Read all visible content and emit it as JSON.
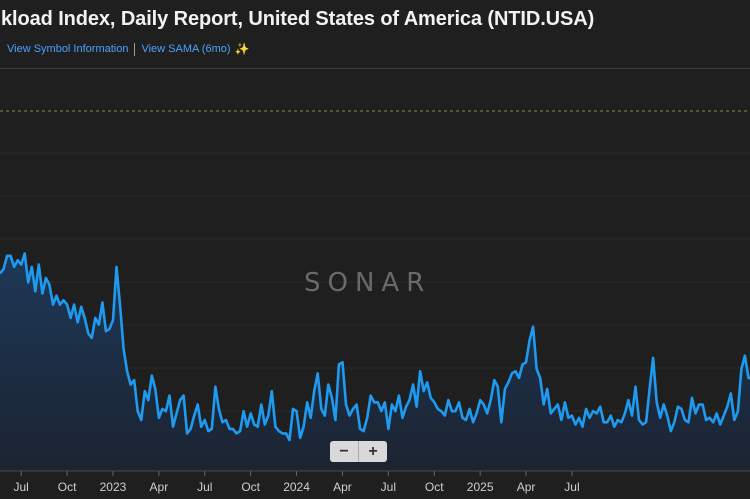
{
  "header": {
    "title": "kload Index, Daily Report, United States of America (NTID.USA)",
    "link_symbol": "View Symbol Information",
    "link_sama": "View SAMA (6mo)",
    "sama_icon": "sparkle-icon"
  },
  "watermark": "SONAR",
  "zoom": {
    "minus": "−",
    "plus": "+"
  },
  "colors": {
    "background": "#1f1f1f",
    "line": "#1e9bf0",
    "area_top": "#1d3a5c",
    "area_bottom": "#1b2433",
    "reference_line": "#7a9a4a"
  },
  "chart_data": {
    "type": "line",
    "title": "",
    "xlabel": "",
    "ylabel": "",
    "x_ticks": [
      "Jul",
      "Oct",
      "2023",
      "Apr",
      "Jul",
      "Oct",
      "2024",
      "Apr",
      "Jul",
      "Oct",
      "2025",
      "Apr",
      "Jul"
    ],
    "x_tick_index": [
      6,
      19,
      32,
      45,
      58,
      71,
      84,
      97,
      110,
      123,
      136,
      149,
      162
    ],
    "grid": true,
    "legend": "none",
    "ylim": [
      0,
      100
    ],
    "series": [
      {
        "values": [
          84,
          86,
          92,
          92,
          87,
          90,
          88,
          93,
          80,
          87,
          76,
          88,
          75,
          82,
          79,
          70,
          74,
          70,
          72,
          70,
          64,
          70,
          62,
          69,
          64,
          57,
          55,
          64,
          61,
          71,
          58,
          59,
          63,
          87,
          70,
          50,
          40,
          34,
          36,
          22,
          18,
          31,
          27,
          38,
          32,
          19,
          23,
          22,
          29,
          15,
          21,
          27,
          29,
          12,
          14,
          20,
          25,
          15,
          18,
          13,
          14,
          33,
          23,
          17,
          18,
          14,
          14,
          12,
          13,
          22,
          15,
          21,
          16,
          15,
          25,
          16,
          20,
          31,
          15,
          13,
          12,
          12,
          9,
          23,
          22,
          10,
          15,
          26,
          19,
          31,
          39,
          23,
          20,
          34,
          28,
          18,
          43,
          44,
          25,
          20,
          23,
          25,
          14,
          13,
          19,
          29,
          26,
          26,
          22,
          26,
          14,
          25,
          22,
          29,
          19,
          24,
          27,
          34,
          24,
          40,
          31,
          35,
          28,
          26,
          23,
          22,
          20,
          27,
          22,
          22,
          26,
          19,
          18,
          23,
          17,
          21,
          27,
          25,
          21,
          27,
          36,
          33,
          17,
          32,
          35,
          39,
          40,
          37,
          43,
          44,
          54,
          60,
          41,
          37,
          25,
          32,
          21,
          23,
          25,
          18,
          26,
          19,
          20,
          16,
          19,
          15,
          23,
          19,
          22,
          21,
          24,
          17,
          17,
          20,
          15,
          18,
          17,
          21,
          27,
          20,
          33,
          18,
          16,
          17,
          32,
          46,
          26,
          19,
          25,
          20,
          13,
          17,
          24,
          23,
          18,
          17,
          28,
          21,
          25,
          25,
          18,
          19,
          17,
          21,
          16,
          20,
          24,
          30,
          18,
          22,
          41,
          47,
          37,
          37
        ]
      }
    ]
  }
}
